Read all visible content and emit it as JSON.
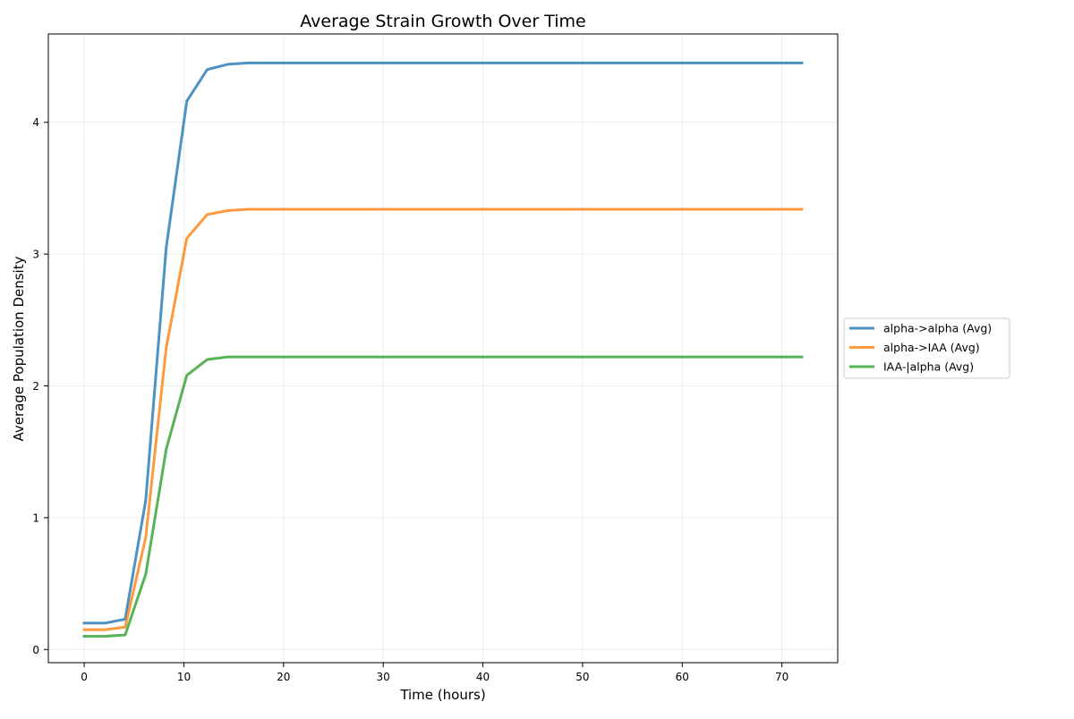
{
  "chart_data": {
    "type": "line",
    "title": "Average Strain Growth Over Time",
    "xlabel": "Time (hours)",
    "ylabel": "Average Population Density",
    "xlim": [
      -3.6,
      75.6
    ],
    "ylim": [
      -0.1,
      4.67
    ],
    "xticks": [
      0,
      10,
      20,
      30,
      40,
      50,
      60,
      70
    ],
    "yticks": [
      0,
      1,
      2,
      3,
      4
    ],
    "grid": true,
    "legend_position": "center-right-outside",
    "x": [
      0,
      2.06,
      4.11,
      6.17,
      8.23,
      10.29,
      12.34,
      14.4,
      16.46,
      18.51,
      20.57,
      22.63,
      24.69,
      26.74,
      28.8,
      30.86,
      32.91,
      34.97,
      37.03,
      39.09,
      41.14,
      43.2,
      45.26,
      47.31,
      49.37,
      51.43,
      53.49,
      55.54,
      57.6,
      59.66,
      61.71,
      63.77,
      65.83,
      67.89,
      69.94,
      72.0
    ],
    "series": [
      {
        "name": "alpha->alpha (Avg)",
        "color": "#1f77b4",
        "values": [
          0.2,
          0.2,
          0.23,
          1.13,
          3.05,
          4.16,
          4.4,
          4.44,
          4.45,
          4.45,
          4.45,
          4.45,
          4.45,
          4.45,
          4.45,
          4.45,
          4.45,
          4.45,
          4.45,
          4.45,
          4.45,
          4.45,
          4.45,
          4.45,
          4.45,
          4.45,
          4.45,
          4.45,
          4.45,
          4.45,
          4.45,
          4.45,
          4.45,
          4.45,
          4.45,
          4.45
        ]
      },
      {
        "name": "alpha->IAA (Avg)",
        "color": "#ff7f0e",
        "values": [
          0.15,
          0.15,
          0.17,
          0.85,
          2.29,
          3.12,
          3.3,
          3.33,
          3.34,
          3.34,
          3.34,
          3.34,
          3.34,
          3.34,
          3.34,
          3.34,
          3.34,
          3.34,
          3.34,
          3.34,
          3.34,
          3.34,
          3.34,
          3.34,
          3.34,
          3.34,
          3.34,
          3.34,
          3.34,
          3.34,
          3.34,
          3.34,
          3.34,
          3.34,
          3.34,
          3.34
        ]
      },
      {
        "name": "IAA-|alpha (Avg)",
        "color": "#2ca02c",
        "values": [
          0.1,
          0.1,
          0.11,
          0.57,
          1.52,
          2.08,
          2.2,
          2.22,
          2.22,
          2.22,
          2.22,
          2.22,
          2.22,
          2.22,
          2.22,
          2.22,
          2.22,
          2.22,
          2.22,
          2.22,
          2.22,
          2.22,
          2.22,
          2.22,
          2.22,
          2.22,
          2.22,
          2.22,
          2.22,
          2.22,
          2.22,
          2.22,
          2.22,
          2.22,
          2.22,
          2.22
        ]
      }
    ]
  }
}
